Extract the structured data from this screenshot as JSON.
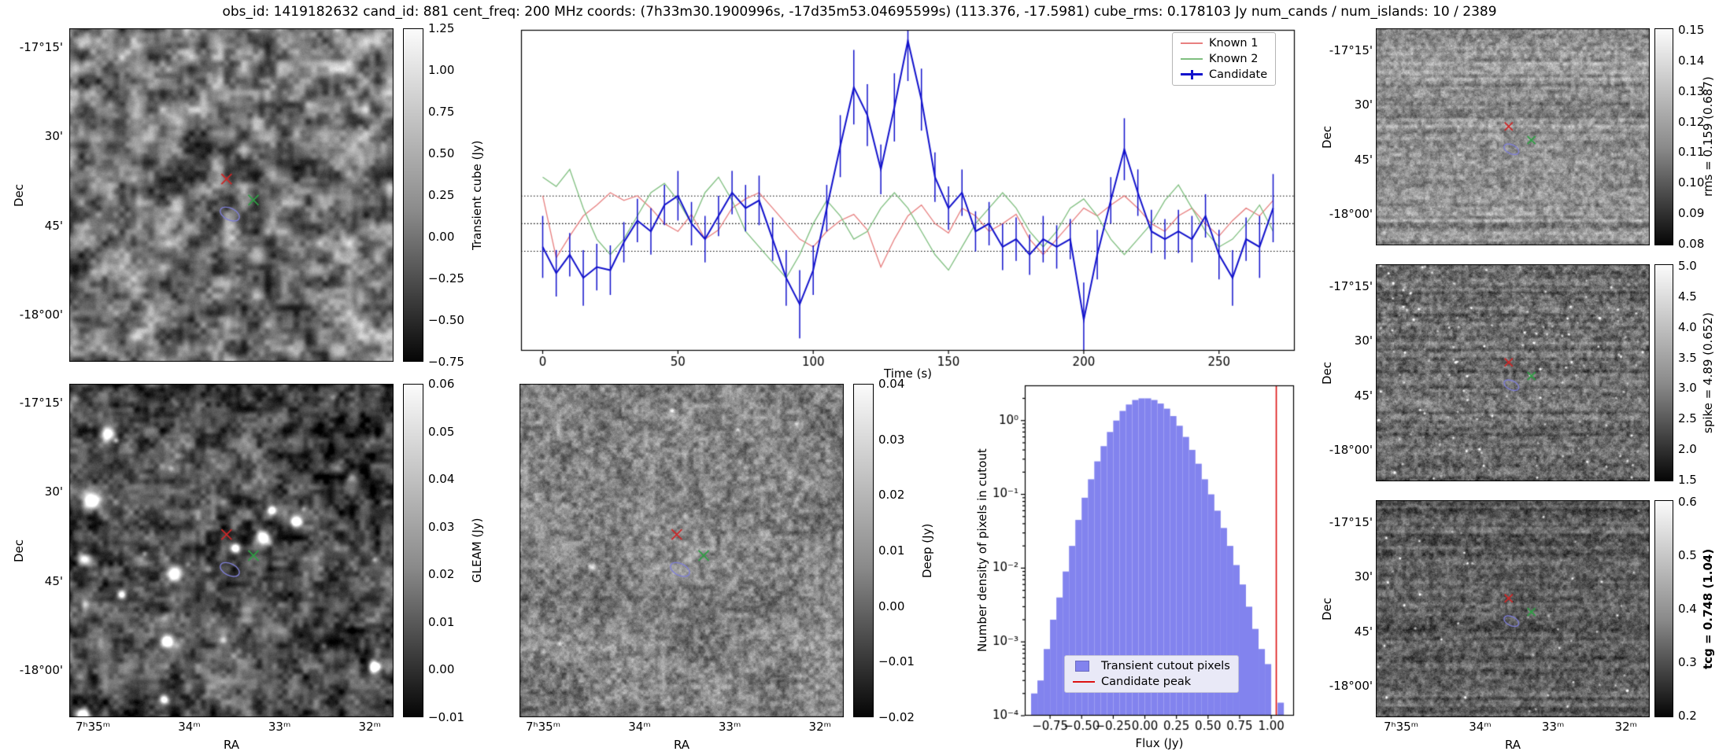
{
  "title": "obs_id: 1419182632 cand_id: 881 cent_freq: 200 MHz coords: (7h33m30.1900996s, -17d35m53.04695599s) (113.376, -17.5981) cube_rms: 0.178103 Jy num_cands / num_islands: 10 / 2389",
  "labels": {
    "dec": "Dec",
    "ra": "RA"
  },
  "dec_ticks": [
    "-17°15'",
    "30'",
    "45'",
    "-18°00'"
  ],
  "ra_ticks": [
    "7ʰ35ᵐ",
    "34ᵐ",
    "33ᵐ",
    "32ᵐ"
  ],
  "panels": {
    "transient": {
      "cbar_label": "Transient cube (Jy)",
      "cbar_ticks": [
        "1.25",
        "1.00",
        "0.75",
        "0.50",
        "0.25",
        "0.00",
        "−0.25",
        "−0.50",
        "−0.75"
      ]
    },
    "gleam": {
      "cbar_label": "GLEAM (Jy)",
      "cbar_ticks": [
        "0.06",
        "0.05",
        "0.04",
        "0.03",
        "0.02",
        "0.01",
        "0.00",
        "−0.01"
      ]
    },
    "deep": {
      "cbar_label": "Deep (Jy)",
      "cbar_ticks": [
        "0.04",
        "0.03",
        "0.02",
        "0.01",
        "0.00",
        "−0.01",
        "−0.02"
      ]
    },
    "rms": {
      "cbar_label": "rms = 0.159 (0.687)",
      "cbar_ticks": [
        "0.15",
        "0.14",
        "0.13",
        "0.12",
        "0.11",
        "0.10",
        "0.09",
        "0.08"
      ]
    },
    "spike": {
      "cbar_label": "spike = 4.89 (0.652)",
      "cbar_ticks": [
        "5.0",
        "4.5",
        "4.0",
        "3.5",
        "3.0",
        "2.5",
        "2.0",
        "1.5"
      ]
    },
    "tcg": {
      "cbar_label": "tcg = 0.748 (1.04)",
      "cbar_ticks": [
        "0.6",
        "0.5",
        "0.4",
        "0.3",
        "0.2"
      ]
    }
  },
  "markers": [
    {
      "name": "known-source-marker-1",
      "shape": "x",
      "color": "#cc2626",
      "fx": 0.485,
      "fy": 0.452
    },
    {
      "name": "known-source-marker-2",
      "shape": "x",
      "color": "#2f9e44",
      "fx": 0.568,
      "fy": 0.515
    },
    {
      "name": "candidate-island-contour",
      "shape": "contour",
      "color": "#7f7fd6",
      "fx": 0.495,
      "fy": 0.557
    }
  ],
  "chart_data": [
    {
      "type": "line",
      "title": "",
      "xlabel": "Time (s)",
      "ylabel": "",
      "x": [
        0,
        5,
        10,
        15,
        20,
        25,
        30,
        35,
        40,
        45,
        50,
        55,
        60,
        65,
        70,
        75,
        80,
        85,
        90,
        95,
        100,
        105,
        110,
        115,
        120,
        125,
        130,
        135,
        140,
        145,
        150,
        155,
        160,
        165,
        170,
        175,
        180,
        185,
        190,
        195,
        200,
        205,
        210,
        215,
        220,
        225,
        230,
        235,
        240,
        245,
        250,
        255,
        260,
        265,
        270
      ],
      "series": [
        {
          "name": "Known 1",
          "color": "#e88080",
          "values": [
            0.18,
            -0.22,
            -0.08,
            0.05,
            0.12,
            0.2,
            0.15,
            0.18,
            0.1,
            0.0,
            -0.05,
            0.06,
            -0.1,
            -0.04,
            0.1,
            0.16,
            0.2,
            0.1,
            0.0,
            -0.1,
            -0.15,
            -0.05,
            0.02,
            0.06,
            -0.04,
            -0.28,
            -0.1,
            0.05,
            0.12,
            0.0,
            -0.06,
            0.1,
            0.05,
            -0.05,
            0.0,
            0.06,
            -0.1,
            -0.2,
            -0.1,
            0.0,
            0.1,
            0.05,
            0.12,
            0.18,
            0.1,
            0.0,
            -0.05,
            0.05,
            0.1,
            0.0,
            -0.08,
            0.02,
            0.1,
            0.05,
            0.15
          ]
        },
        {
          "name": "Known 2",
          "color": "#7fbf7f",
          "values": [
            0.3,
            0.24,
            0.35,
            0.1,
            -0.1,
            -0.2,
            -0.1,
            0.05,
            0.2,
            0.26,
            0.15,
            0.0,
            0.2,
            0.3,
            0.15,
            -0.05,
            -0.15,
            -0.25,
            -0.35,
            -0.2,
            0.0,
            0.15,
            0.05,
            -0.1,
            -0.05,
            0.1,
            0.2,
            0.1,
            -0.05,
            -0.2,
            -0.3,
            -0.15,
            0.0,
            0.1,
            0.2,
            0.1,
            -0.05,
            -0.15,
            -0.05,
            0.1,
            0.16,
            0.05,
            -0.1,
            -0.2,
            -0.1,
            0.0,
            0.15,
            0.25,
            0.1,
            -0.05,
            -0.15,
            -0.1,
            0.0,
            0.12,
            -0.05
          ]
        },
        {
          "name": "Candidate",
          "color": "#1212cc",
          "values": [
            -0.15,
            -0.32,
            -0.2,
            -0.35,
            -0.28,
            -0.3,
            -0.12,
            0.02,
            -0.05,
            0.12,
            0.18,
            0.0,
            -0.1,
            0.05,
            0.2,
            0.1,
            0.15,
            -0.1,
            -0.35,
            -0.52,
            -0.3,
            0.1,
            0.5,
            0.88,
            0.7,
            0.35,
            0.75,
            1.18,
            0.8,
            0.3,
            0.1,
            0.2,
            -0.05,
            0.0,
            -0.15,
            -0.1,
            -0.2,
            -0.1,
            -0.15,
            -0.1,
            -0.62,
            -0.2,
            0.15,
            0.48,
            0.2,
            -0.05,
            -0.1,
            -0.05,
            -0.1,
            0.05,
            -0.2,
            -0.35,
            -0.1,
            -0.15,
            0.1
          ],
          "errors": [
            0.2,
            0.15,
            0.14,
            0.18,
            0.15,
            0.16,
            0.13,
            0.14,
            0.15,
            0.13,
            0.16,
            0.14,
            0.15,
            0.13,
            0.14,
            0.15,
            0.16,
            0.14,
            0.18,
            0.22,
            0.16,
            0.15,
            0.2,
            0.24,
            0.2,
            0.16,
            0.22,
            0.26,
            0.2,
            0.16,
            0.14,
            0.15,
            0.13,
            0.14,
            0.15,
            0.14,
            0.13,
            0.15,
            0.14,
            0.13,
            0.24,
            0.16,
            0.15,
            0.2,
            0.15,
            0.14,
            0.13,
            0.14,
            0.15,
            0.14,
            0.16,
            0.18,
            0.14,
            0.2,
            0.22
          ]
        }
      ],
      "hlines": [
        0.178,
        0.0,
        -0.178
      ],
      "xticks": [
        0,
        50,
        100,
        150,
        200,
        250
      ],
      "xlim": [
        -8,
        278
      ],
      "ylim": [
        -0.82,
        1.25
      ],
      "legend_position": "upper right",
      "grid": false
    },
    {
      "type": "bar",
      "title": "",
      "xlabel": "Flux (Jy)",
      "ylabel": "Number density of pixels in cutout",
      "yscale": "log",
      "bin_start": -0.9,
      "bin_width": 0.05,
      "counts": [
        0.0002,
        0.0003,
        0.0008,
        0.002,
        0.004,
        0.009,
        0.02,
        0.045,
        0.09,
        0.16,
        0.28,
        0.45,
        0.7,
        1.0,
        1.35,
        1.65,
        1.9,
        2.0,
        2.0,
        1.9,
        1.7,
        1.45,
        1.15,
        0.85,
        0.6,
        0.4,
        0.26,
        0.16,
        0.1,
        0.06,
        0.035,
        0.02,
        0.011,
        0.006,
        0.003,
        0.0015,
        0.0008,
        0.0005,
        0,
        0.00015
      ],
      "candidate_peak": 1.04,
      "bar_color": "#8283ee",
      "line_color": "#dd1111",
      "xticks": [
        -0.75,
        -0.5,
        -0.25,
        0,
        0.25,
        0.5,
        0.75,
        1
      ],
      "ytick_labels": [
        "10⁰",
        "10⁻¹",
        "10⁻²",
        "10⁻³",
        "10⁻⁴"
      ],
      "xlim": [
        -0.95,
        1.18
      ],
      "ylim": [
        0.0001,
        3
      ],
      "legend": [
        "Transient cutout pixels",
        "Candidate peak"
      ],
      "legend_position": "lower center"
    }
  ]
}
